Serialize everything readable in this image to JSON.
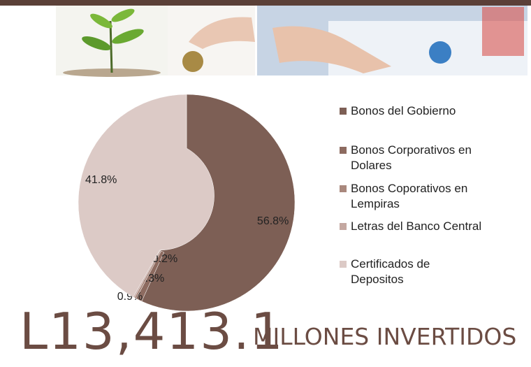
{
  "chart_data": {
    "type": "pie",
    "categories": [
      "Bonos del Gobierno",
      "Bonos Corporativos en Dolares",
      "Bonos Coporativos en Lempiras",
      "Letras del Banco Central",
      "Certificados de Depositos"
    ],
    "values": [
      56.8,
      0.9,
      0.3,
      0.2,
      41.8
    ],
    "value_labels": [
      "56.8%",
      "0.9%",
      "0.3%",
      "0.2%",
      "41.8%"
    ],
    "colors": [
      "#7d5f55",
      "#8d6b60",
      "#a9887d",
      "#c4a8a1",
      "#dccac6"
    ],
    "donut": true
  },
  "headline": {
    "amount": "L13,413.1",
    "caption": "MILLONES INVERTIDOS"
  }
}
